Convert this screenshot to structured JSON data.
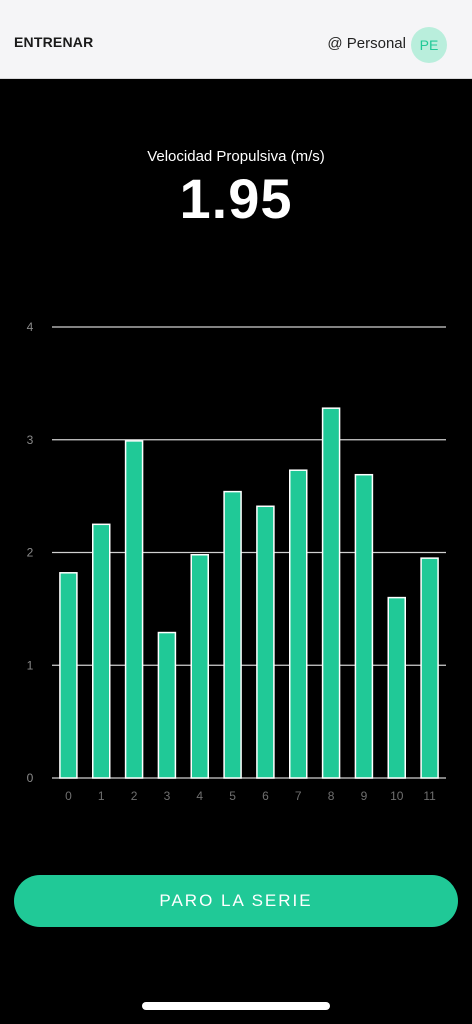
{
  "header": {
    "title": "ENTRENAR",
    "profile_label": "@ Personal",
    "avatar_initials": "PE"
  },
  "metric": {
    "label": "Velocidad Propulsiva (m/s)",
    "value": "1.95"
  },
  "chart_data": {
    "type": "bar",
    "categories": [
      "0",
      "1",
      "2",
      "3",
      "4",
      "5",
      "6",
      "7",
      "8",
      "9",
      "10",
      "11"
    ],
    "values": [
      1.82,
      2.25,
      2.99,
      1.29,
      1.98,
      2.54,
      2.41,
      2.73,
      3.28,
      2.69,
      1.6,
      1.95
    ],
    "yticks": [
      "0",
      "1",
      "2",
      "3",
      "4"
    ],
    "ylim": [
      0,
      4
    ],
    "grid": true,
    "bar_color": "#20c997",
    "bar_border_color": "#ffffff"
  },
  "actions": {
    "stop_label": "PARO LA SERIE"
  },
  "colors": {
    "accent": "#20c997",
    "background": "#000000",
    "header_bg": "#f5f5f7"
  }
}
